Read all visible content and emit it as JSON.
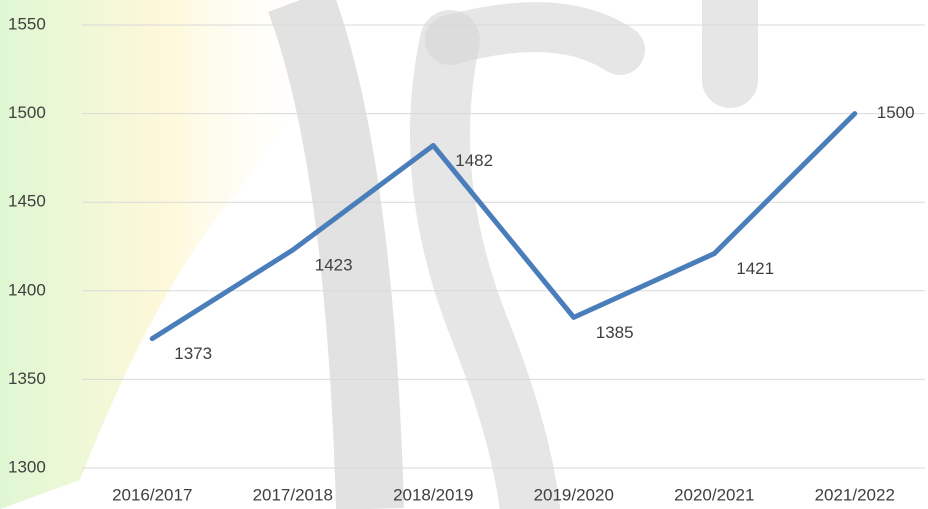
{
  "chart_data": {
    "type": "line",
    "categories": [
      "2016/2017",
      "2017/2018",
      "2018/2019",
      "2019/2020",
      "2020/2021",
      "2021/2022"
    ],
    "values": [
      1373,
      1423,
      1482,
      1385,
      1421,
      1500
    ],
    "color": "#4a7ebb",
    "ylim": [
      1300,
      1550
    ],
    "yticks": [
      1300,
      1350,
      1400,
      1450,
      1500,
      1550
    ],
    "grid": true
  }
}
